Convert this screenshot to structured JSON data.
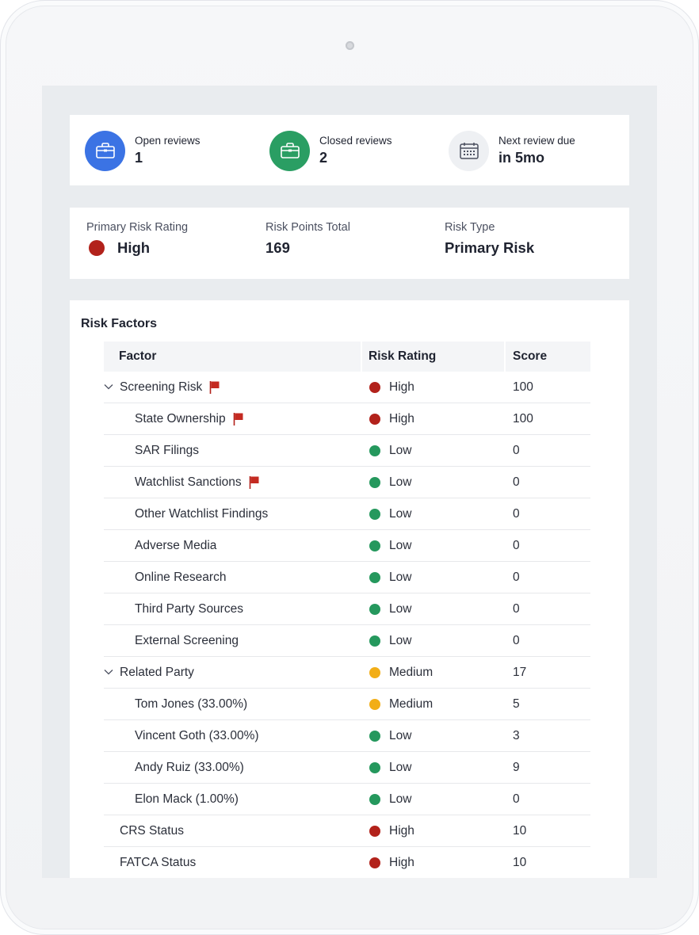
{
  "reviews": [
    {
      "label": "Open reviews",
      "value": "1",
      "icon": "briefcase-icon",
      "color": "#3b73e4"
    },
    {
      "label": "Closed reviews",
      "value": "2",
      "icon": "briefcase-icon",
      "color": "#2a9e63"
    },
    {
      "label": "Next review due",
      "value": "in 5mo",
      "icon": "calendar-icon",
      "color": "#eef0f3"
    }
  ],
  "risk": {
    "primary_label": "Primary Risk Rating",
    "primary_value": "High",
    "primary_color": "#b2221b",
    "points_label": "Risk Points Total",
    "points_value": "169",
    "type_label": "Risk Type",
    "type_value": "Primary Risk"
  },
  "factors": {
    "title": "Risk Factors",
    "headers": {
      "factor": "Factor",
      "rating": "Risk Rating",
      "score": "Score"
    },
    "rows": [
      {
        "name": "Screening Risk",
        "level": 0,
        "expandable": true,
        "flag": true,
        "rating": "High",
        "color": "#b2221b",
        "score": "100"
      },
      {
        "name": "State Ownership",
        "level": 1,
        "expandable": false,
        "flag": true,
        "rating": "High",
        "color": "#b2221b",
        "score": "100"
      },
      {
        "name": "SAR Filings",
        "level": 1,
        "expandable": false,
        "flag": false,
        "rating": "Low",
        "color": "#25985d",
        "score": "0"
      },
      {
        "name": "Watchlist Sanctions",
        "level": 1,
        "expandable": false,
        "flag": true,
        "rating": "Low",
        "color": "#25985d",
        "score": "0"
      },
      {
        "name": "Other Watchlist Findings",
        "level": 1,
        "expandable": false,
        "flag": false,
        "rating": "Low",
        "color": "#25985d",
        "score": "0"
      },
      {
        "name": "Adverse Media",
        "level": 1,
        "expandable": false,
        "flag": false,
        "rating": "Low",
        "color": "#25985d",
        "score": "0"
      },
      {
        "name": "Online Research",
        "level": 1,
        "expandable": false,
        "flag": false,
        "rating": "Low",
        "color": "#25985d",
        "score": "0"
      },
      {
        "name": "Third Party Sources",
        "level": 1,
        "expandable": false,
        "flag": false,
        "rating": "Low",
        "color": "#25985d",
        "score": "0"
      },
      {
        "name": "External Screening",
        "level": 1,
        "expandable": false,
        "flag": false,
        "rating": "Low",
        "color": "#25985d",
        "score": "0"
      },
      {
        "name": "Related Party",
        "level": 0,
        "expandable": true,
        "flag": false,
        "rating": "Medium",
        "color": "#f2ae17",
        "score": "17"
      },
      {
        "name": "Tom Jones (33.00%)",
        "level": 1,
        "expandable": false,
        "flag": false,
        "rating": "Medium",
        "color": "#f2ae17",
        "score": "5"
      },
      {
        "name": "Vincent Goth (33.00%)",
        "level": 1,
        "expandable": false,
        "flag": false,
        "rating": "Low",
        "color": "#25985d",
        "score": "3"
      },
      {
        "name": "Andy Ruiz (33.00%)",
        "level": 1,
        "expandable": false,
        "flag": false,
        "rating": "Low",
        "color": "#25985d",
        "score": "9"
      },
      {
        "name": "Elon Mack (1.00%)",
        "level": 1,
        "expandable": false,
        "flag": false,
        "rating": "Low",
        "color": "#25985d",
        "score": "0"
      },
      {
        "name": "CRS Status",
        "level": 0,
        "expandable": false,
        "flag": false,
        "rating": "High",
        "color": "#b2221b",
        "score": "10"
      },
      {
        "name": "FATCA Status",
        "level": 0,
        "expandable": false,
        "flag": false,
        "rating": "High",
        "color": "#b2221b",
        "score": "10"
      }
    ]
  }
}
